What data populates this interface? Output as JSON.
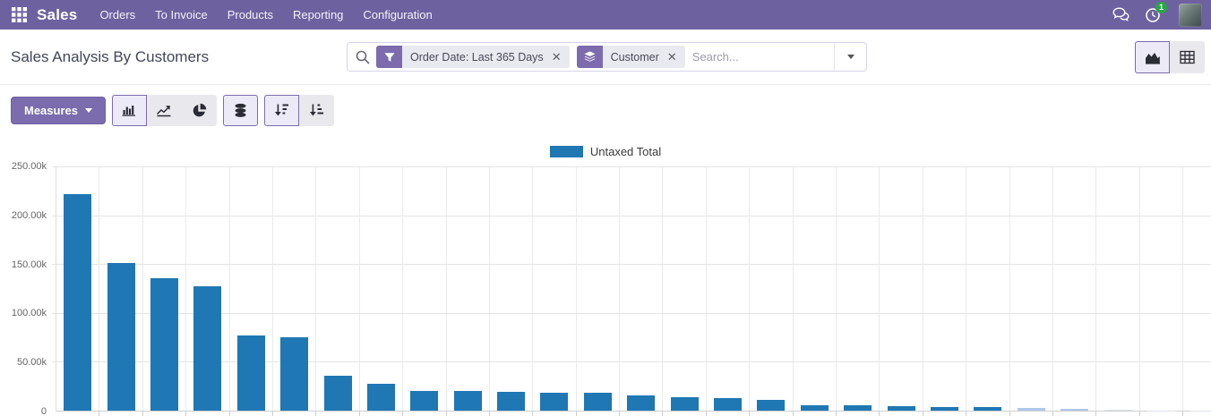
{
  "navbar": {
    "app_name": "Sales",
    "menu_items": [
      "Orders",
      "To Invoice",
      "Products",
      "Reporting",
      "Configuration"
    ],
    "activity_badge": "1",
    "bg_color": "#6e61a0"
  },
  "control_panel": {
    "title": "Sales Analysis By Customers",
    "search": {
      "placeholder": "Search...",
      "facets": [
        {
          "icon": "filter-icon",
          "label": "Order Date: Last 365 Days"
        },
        {
          "icon": "layers-icon",
          "label": "Customer"
        }
      ]
    },
    "view_switcher": [
      {
        "icon": "graph-view-icon",
        "active": true
      },
      {
        "icon": "pivot-view-icon",
        "active": false
      }
    ]
  },
  "toolbar": {
    "measures_label": "Measures",
    "chart_type_buttons": [
      {
        "icon": "bar-chart-icon",
        "active": true
      },
      {
        "icon": "line-chart-icon",
        "active": false
      },
      {
        "icon": "pie-chart-icon",
        "active": false
      }
    ],
    "stacked_button": {
      "icon": "stacked-icon",
      "active": true
    },
    "sort_buttons": [
      {
        "icon": "sort-descending-icon",
        "active": true
      },
      {
        "icon": "sort-ascending-icon",
        "active": false
      }
    ]
  },
  "chart_data": {
    "type": "bar",
    "title": "",
    "legend": [
      "Untaxed Total"
    ],
    "legend_position": "top",
    "series": [
      {
        "name": "Untaxed Total",
        "values": [
          221000,
          151000,
          135500,
          126500,
          77000,
          75000,
          35500,
          27500,
          20500,
          20300,
          19200,
          18600,
          18000,
          15200,
          13500,
          13000,
          11000,
          5600,
          5400,
          4400,
          3700,
          3400,
          2400,
          2200,
          1400,
          300,
          200
        ]
      }
    ],
    "bar_colors": [
      "#1f77b4",
      "#1f77b4",
      "#1f77b4",
      "#1f77b4",
      "#1f77b4",
      "#1f77b4",
      "#1f77b4",
      "#1f77b4",
      "#1f77b4",
      "#1f77b4",
      "#1f77b4",
      "#1f77b4",
      "#1f77b4",
      "#1f77b4",
      "#1f77b4",
      "#1f77b4",
      "#1f77b4",
      "#1f77b4",
      "#1f77b4",
      "#1f77b4",
      "#1f77b4",
      "#1f77b4",
      "#aec7e8",
      "#aec7e8",
      "#dde3ea",
      "#dde3ea",
      "#dde3ea"
    ],
    "ylabel": "",
    "xlabel": "",
    "ylim": [
      0,
      250000
    ],
    "y_ticks": [
      "250.00k",
      "200.00k",
      "150.00k",
      "100.00k",
      "50.00k",
      "0"
    ],
    "grid": true,
    "x_tick_labels_visible": false
  }
}
